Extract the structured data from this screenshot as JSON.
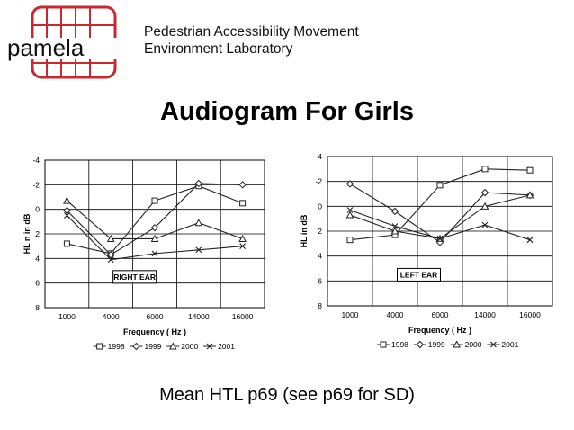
{
  "header": {
    "logo_text": "pamela",
    "org_line1": "Pedestrian Accessibility Movement",
    "org_line2": "Environment Laboratory"
  },
  "slide": {
    "title": "Audiogram For Girls",
    "footer": "Mean HTL p69 (see p69 for SD)"
  },
  "colors": {
    "logo_red": "#c8282e",
    "line": "#222222",
    "grid": "#000000"
  },
  "chart_data": [
    {
      "type": "line",
      "panel_label": "RIGHT EAR",
      "categories": [
        "1000",
        "4000",
        "6000",
        "14000",
        "16000"
      ],
      "ylabel": "HL n in dB",
      "xlabel": "Frequency ( Hz )",
      "ylim": [
        -4,
        8
      ],
      "y_inverted": true,
      "yticks": [
        "-4",
        "-2",
        "0",
        "2",
        "4",
        "6",
        "8"
      ],
      "legend_placement": "bottom",
      "series": [
        {
          "name": "1998",
          "marker": "square",
          "values": [
            2.8,
            3.6,
            -0.7,
            -1.9,
            -0.5
          ]
        },
        {
          "name": "1999",
          "marker": "diamond",
          "values": [
            0.1,
            3.7,
            1.5,
            -2.1,
            -2.0
          ]
        },
        {
          "name": "2000",
          "marker": "triangle",
          "values": [
            -0.7,
            2.4,
            2.4,
            1.1,
            2.4
          ]
        },
        {
          "name": "2001",
          "marker": "x",
          "values": [
            0.5,
            4.1,
            3.6,
            3.3,
            3.0
          ]
        }
      ]
    },
    {
      "type": "line",
      "panel_label": "LEFT EAR",
      "categories": [
        "1000",
        "4000",
        "6000",
        "14000",
        "16000"
      ],
      "ylabel": "HL in dB",
      "xlabel": "Frequency ( Hz )",
      "ylim": [
        -4,
        8
      ],
      "y_inverted": true,
      "yticks": [
        "-4",
        "-2",
        "0",
        "2",
        "4",
        "6",
        "8"
      ],
      "legend_placement": "bottom",
      "series": [
        {
          "name": "1998",
          "marker": "square",
          "values": [
            2.7,
            2.3,
            -1.7,
            -3.0,
            -2.9
          ]
        },
        {
          "name": "1999",
          "marker": "diamond",
          "values": [
            -1.8,
            0.4,
            2.9,
            -1.1,
            -0.9
          ]
        },
        {
          "name": "2000",
          "marker": "triangle",
          "values": [
            0.7,
            2.0,
            2.6,
            0.0,
            -0.9
          ]
        },
        {
          "name": "2001",
          "marker": "x",
          "values": [
            0.3,
            1.6,
            2.6,
            1.5,
            2.7
          ]
        }
      ]
    }
  ]
}
